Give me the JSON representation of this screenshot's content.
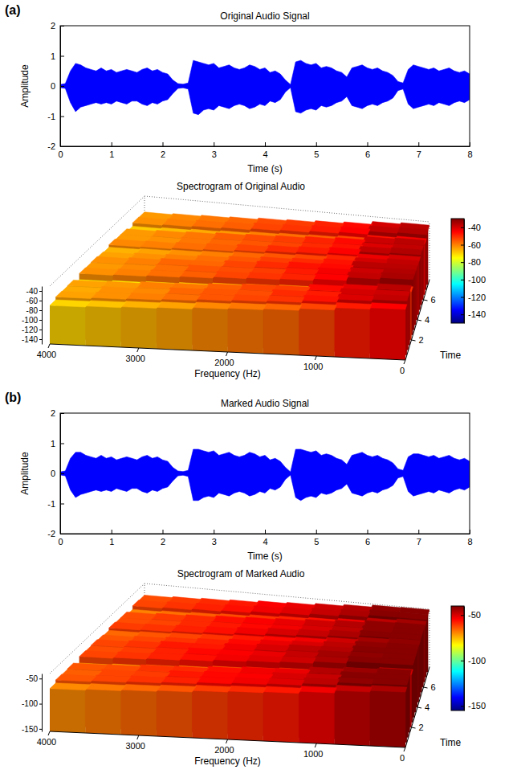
{
  "chart_data": [
    {
      "type": "area",
      "panel_label": "(a)",
      "title": "Original Audio Signal",
      "x_label": "Time (s)",
      "y_label": "Amplitude",
      "xlim": [
        0,
        8
      ],
      "xticks": [
        0,
        1,
        2,
        3,
        4,
        5,
        6,
        7,
        8
      ],
      "ylim": [
        -2,
        2
      ],
      "yticks": [
        -2,
        -1,
        0,
        1,
        2
      ],
      "x": [
        0,
        0.1,
        0.2,
        0.3,
        0.4,
        0.5,
        0.6,
        0.7,
        0.8,
        0.9,
        1,
        1.1,
        1.2,
        1.3,
        1.4,
        1.5,
        1.6,
        1.7,
        1.8,
        1.9,
        2,
        2.1,
        2.2,
        2.3,
        2.4,
        2.5,
        2.6,
        2.7,
        2.8,
        2.9,
        3,
        3.1,
        3.2,
        3.3,
        3.4,
        3.5,
        3.6,
        3.7,
        3.8,
        3.9,
        4,
        4.1,
        4.2,
        4.3,
        4.4,
        4.5,
        4.6,
        4.7,
        4.8,
        4.9,
        5,
        5.1,
        5.2,
        5.3,
        5.4,
        5.5,
        5.6,
        5.7,
        5.8,
        5.9,
        6,
        6.1,
        6.2,
        6.3,
        6.4,
        6.5,
        6.6,
        6.7,
        6.8,
        6.9,
        7,
        7.1,
        7.2,
        7.3,
        7.4,
        7.5,
        7.6,
        7.7,
        7.8,
        7.9,
        8
      ],
      "series": [
        {
          "color": "#0000ff",
          "values": [
            0.05,
            0.08,
            0.5,
            0.75,
            0.7,
            0.6,
            0.55,
            0.5,
            0.6,
            0.5,
            0.55,
            0.45,
            0.5,
            0.55,
            0.5,
            0.45,
            0.55,
            0.6,
            0.5,
            0.55,
            0.45,
            0.4,
            0.2,
            0.08,
            0.06,
            0.1,
            0.85,
            0.8,
            0.75,
            0.7,
            0.75,
            0.6,
            0.65,
            0.7,
            0.6,
            0.55,
            0.6,
            0.7,
            0.65,
            0.55,
            0.6,
            0.45,
            0.5,
            0.4,
            0.2,
            0.05,
            0.8,
            0.85,
            0.75,
            0.7,
            0.75,
            0.6,
            0.65,
            0.6,
            0.5,
            0.45,
            0.3,
            0.6,
            0.65,
            0.7,
            0.6,
            0.55,
            0.6,
            0.5,
            0.45,
            0.35,
            0.15,
            0.1,
            0.55,
            0.7,
            0.65,
            0.6,
            0.55,
            0.6,
            0.5,
            0.55,
            0.6,
            0.5,
            0.45,
            0.5,
            0.4
          ]
        },
        {
          "color": "#0000ff",
          "values": [
            -0.05,
            -0.08,
            -0.55,
            -0.85,
            -0.7,
            -0.65,
            -0.6,
            -0.55,
            -0.6,
            -0.55,
            -0.6,
            -0.5,
            -0.55,
            -0.6,
            -0.5,
            -0.5,
            -0.6,
            -0.65,
            -0.55,
            -0.6,
            -0.5,
            -0.45,
            -0.25,
            -0.08,
            -0.06,
            -0.1,
            -0.9,
            -0.95,
            -0.8,
            -0.75,
            -0.8,
            -0.65,
            -0.7,
            -0.75,
            -0.65,
            -0.6,
            -0.65,
            -0.75,
            -0.7,
            -0.6,
            -0.65,
            -0.5,
            -0.55,
            -0.45,
            -0.2,
            -0.05,
            -0.85,
            -0.9,
            -0.8,
            -0.75,
            -0.8,
            -0.65,
            -0.7,
            -0.65,
            -0.55,
            -0.5,
            -0.35,
            -0.65,
            -0.7,
            -0.75,
            -0.65,
            -0.6,
            -0.65,
            -0.55,
            -0.5,
            -0.4,
            -0.15,
            -0.1,
            -0.6,
            -0.75,
            -0.7,
            -0.65,
            -0.6,
            -0.65,
            -0.55,
            -0.6,
            -0.65,
            -0.55,
            -0.5,
            -0.55,
            -0.45
          ]
        }
      ]
    },
    {
      "type": "surface",
      "title": "Spectrogram of Original Audio",
      "x_label": "Frequency (Hz)",
      "y_label": "Time",
      "xlim": [
        0,
        4000
      ],
      "xticks": [
        0,
        1000,
        2000,
        3000,
        4000
      ],
      "ylim": [
        0,
        8
      ],
      "yticks": [
        2,
        4,
        6
      ],
      "zlim": [
        -150,
        -30
      ],
      "zticks": [
        -140,
        -120,
        -100,
        -80,
        -60,
        -40
      ],
      "x": [
        200,
        600,
        1000,
        1400,
        1800,
        2200,
        2600,
        3000,
        3400,
        3800
      ],
      "y": [
        0.25,
        0.75,
        1.25,
        1.75,
        2.25,
        2.75,
        3.25,
        3.75,
        4.25,
        4.75,
        5.25,
        5.75,
        6.25,
        6.75,
        7.25,
        7.75
      ],
      "z": [
        [
          -45,
          -48,
          -53,
          -57,
          -59,
          -61,
          -64,
          -66,
          -68,
          -70
        ],
        [
          -38,
          -41,
          -47,
          -51,
          -53,
          -55,
          -58,
          -60,
          -62,
          -64
        ],
        [
          -39,
          -40,
          -48,
          -50,
          -54,
          -55,
          -57,
          -61,
          -62,
          -65
        ],
        [
          -37,
          -42,
          -46,
          -52,
          -53,
          -56,
          -59,
          -60,
          -63,
          -64
        ],
        [
          -50,
          -54,
          -59,
          -62,
          -64,
          -66,
          -69,
          -71,
          -73,
          -75
        ],
        [
          -35,
          -38,
          -45,
          -49,
          -51,
          -53,
          -56,
          -58,
          -60,
          -62
        ],
        [
          -36,
          -39,
          -44,
          -48,
          -52,
          -54,
          -55,
          -58,
          -61,
          -63
        ],
        [
          -37,
          -37,
          -46,
          -47,
          -50,
          -53,
          -57,
          -57,
          -60,
          -62
        ],
        [
          -38,
          -40,
          -47,
          -50,
          -52,
          -55,
          -58,
          -60,
          -62,
          -64
        ],
        [
          -40,
          -43,
          -49,
          -53,
          -55,
          -57,
          -60,
          -62,
          -64,
          -66
        ],
        [
          -36,
          -38,
          -45,
          -48,
          -50,
          -53,
          -56,
          -58,
          -60,
          -61
        ],
        [
          -38,
          -41,
          -47,
          -50,
          -53,
          -55,
          -57,
          -59,
          -62,
          -63
        ],
        [
          -37,
          -39,
          -46,
          -49,
          -52,
          -54,
          -56,
          -59,
          -61,
          -63
        ],
        [
          -44,
          -47,
          -53,
          -56,
          -58,
          -60,
          -63,
          -65,
          -67,
          -69
        ],
        [
          -36,
          -38,
          -45,
          -48,
          -51,
          -53,
          -56,
          -58,
          -60,
          -62
        ],
        [
          -37,
          -40,
          -46,
          -49,
          -52,
          -54,
          -57,
          -59,
          -61,
          -63
        ]
      ],
      "colorbar_range": [
        -150,
        -30
      ],
      "colorbar_ticks": [
        -140,
        -120,
        -100,
        -80,
        -60,
        -40
      ]
    },
    {
      "type": "area",
      "panel_label": "(b)",
      "title": "Marked Audio Signal",
      "x_label": "Time (s)",
      "y_label": "Amplitude",
      "xlim": [
        0,
        8
      ],
      "xticks": [
        0,
        1,
        2,
        3,
        4,
        5,
        6,
        7,
        8
      ],
      "ylim": [
        -2,
        2
      ],
      "yticks": [
        -2,
        -1,
        0,
        1,
        2
      ],
      "x": [
        0,
        0.1,
        0.2,
        0.3,
        0.4,
        0.5,
        0.6,
        0.7,
        0.8,
        0.9,
        1,
        1.1,
        1.2,
        1.3,
        1.4,
        1.5,
        1.6,
        1.7,
        1.8,
        1.9,
        2,
        2.1,
        2.2,
        2.3,
        2.4,
        2.5,
        2.6,
        2.7,
        2.8,
        2.9,
        3,
        3.1,
        3.2,
        3.3,
        3.4,
        3.5,
        3.6,
        3.7,
        3.8,
        3.9,
        4,
        4.1,
        4.2,
        4.3,
        4.4,
        4.5,
        4.6,
        4.7,
        4.8,
        4.9,
        5,
        5.1,
        5.2,
        5.3,
        5.4,
        5.5,
        5.6,
        5.7,
        5.8,
        5.9,
        6,
        6.1,
        6.2,
        6.3,
        6.4,
        6.5,
        6.6,
        6.7,
        6.8,
        6.9,
        7,
        7.1,
        7.2,
        7.3,
        7.4,
        7.5,
        7.6,
        7.7,
        7.8,
        7.9,
        8
      ],
      "series": [
        {
          "color": "#0000ff",
          "values": [
            0.05,
            0.08,
            0.5,
            0.7,
            0.7,
            0.6,
            0.55,
            0.5,
            0.6,
            0.5,
            0.55,
            0.45,
            0.5,
            0.55,
            0.5,
            0.45,
            0.55,
            0.6,
            0.5,
            0.55,
            0.45,
            0.4,
            0.2,
            0.08,
            0.06,
            0.1,
            0.8,
            0.8,
            0.75,
            0.7,
            0.75,
            0.6,
            0.65,
            0.7,
            0.6,
            0.55,
            0.6,
            0.7,
            0.65,
            0.55,
            0.6,
            0.45,
            0.5,
            0.4,
            0.2,
            0.05,
            0.8,
            0.8,
            0.75,
            0.7,
            0.75,
            0.6,
            0.65,
            0.6,
            0.5,
            0.45,
            0.3,
            0.6,
            0.65,
            0.7,
            0.6,
            0.55,
            0.6,
            0.5,
            0.45,
            0.35,
            0.15,
            0.1,
            0.55,
            0.65,
            0.65,
            0.6,
            0.55,
            0.6,
            0.5,
            0.55,
            0.6,
            0.5,
            0.45,
            0.5,
            0.4
          ]
        },
        {
          "color": "#0000ff",
          "values": [
            -0.05,
            -0.08,
            -0.55,
            -0.8,
            -0.7,
            -0.65,
            -0.6,
            -0.55,
            -0.6,
            -0.55,
            -0.6,
            -0.5,
            -0.55,
            -0.6,
            -0.5,
            -0.5,
            -0.6,
            -0.65,
            -0.55,
            -0.6,
            -0.5,
            -0.45,
            -0.25,
            -0.08,
            -0.06,
            -0.1,
            -0.9,
            -0.9,
            -0.8,
            -0.75,
            -0.8,
            -0.65,
            -0.7,
            -0.75,
            -0.65,
            -0.6,
            -0.65,
            -0.75,
            -0.7,
            -0.6,
            -0.65,
            -0.5,
            -0.55,
            -0.45,
            -0.2,
            -0.05,
            -0.8,
            -0.9,
            -0.8,
            -0.75,
            -0.8,
            -0.65,
            -0.7,
            -0.65,
            -0.55,
            -0.5,
            -0.35,
            -0.65,
            -0.7,
            -0.75,
            -0.65,
            -0.6,
            -0.65,
            -0.55,
            -0.5,
            -0.4,
            -0.15,
            -0.1,
            -0.6,
            -0.75,
            -0.7,
            -0.65,
            -0.6,
            -0.65,
            -0.55,
            -0.6,
            -0.65,
            -0.55,
            -0.5,
            -0.55,
            -0.45
          ]
        }
      ]
    },
    {
      "type": "surface",
      "title": "Spectrogram of Marked Audio",
      "x_label": "Frequency (Hz)",
      "y_label": "Time",
      "xlim": [
        0,
        4000
      ],
      "xticks": [
        0,
        1000,
        2000,
        3000,
        4000
      ],
      "ylim": [
        0,
        8
      ],
      "yticks": [
        2,
        4,
        6
      ],
      "zlim": [
        -155,
        -40
      ],
      "zticks": [
        -150,
        -100,
        -50
      ],
      "x": [
        200,
        600,
        1000,
        1400,
        1800,
        2200,
        2600,
        3000,
        3400,
        3800
      ],
      "y": [
        0.25,
        0.75,
        1.25,
        1.75,
        2.25,
        2.75,
        3.25,
        3.75,
        4.25,
        4.75,
        5.25,
        5.75,
        6.25,
        6.75,
        7.25,
        7.75
      ],
      "z": [
        [
          -45,
          -48,
          -53,
          -57,
          -59,
          -61,
          -64,
          -66,
          -68,
          -70
        ],
        [
          -41,
          -42,
          -47,
          -51,
          -53,
          -55,
          -58,
          -60,
          -62,
          -64
        ],
        [
          -41,
          -41,
          -48,
          -50,
          -54,
          -55,
          -57,
          -61,
          -62,
          -65
        ],
        [
          -41,
          -43,
          -46,
          -52,
          -53,
          -56,
          -59,
          -60,
          -63,
          -64
        ],
        [
          -50,
          -54,
          -59,
          -62,
          -64,
          -66,
          -69,
          -71,
          -73,
          -75
        ],
        [
          -41,
          -41,
          -45,
          -49,
          -51,
          -53,
          -56,
          -58,
          -60,
          -62
        ],
        [
          -41,
          -42,
          -44,
          -48,
          -52,
          -54,
          -55,
          -58,
          -61,
          -63
        ],
        [
          -41,
          -41,
          -46,
          -47,
          -50,
          -53,
          -57,
          -57,
          -60,
          -62
        ],
        [
          -41,
          -42,
          -47,
          -50,
          -52,
          -55,
          -58,
          -60,
          -62,
          -64
        ],
        [
          -42,
          -44,
          -49,
          -53,
          -55,
          -57,
          -60,
          -62,
          -64,
          -66
        ],
        [
          -41,
          -41,
          -45,
          -48,
          -50,
          -53,
          -56,
          -58,
          -60,
          -61
        ],
        [
          -41,
          -42,
          -47,
          -50,
          -53,
          -55,
          -57,
          -59,
          -62,
          -63
        ],
        [
          -41,
          -42,
          -46,
          -49,
          -52,
          -54,
          -56,
          -59,
          -61,
          -63
        ],
        [
          -44,
          -47,
          -53,
          -56,
          -58,
          -60,
          -63,
          -65,
          -67,
          -69
        ],
        [
          -41,
          -41,
          -45,
          -48,
          -51,
          -53,
          -56,
          -58,
          -60,
          -62
        ],
        [
          -41,
          -42,
          -46,
          -49,
          -52,
          -54,
          -57,
          -59,
          -61,
          -63
        ]
      ],
      "colorbar_range": [
        -155,
        -40
      ],
      "colorbar_ticks": [
        -150,
        -100,
        -50
      ]
    }
  ]
}
